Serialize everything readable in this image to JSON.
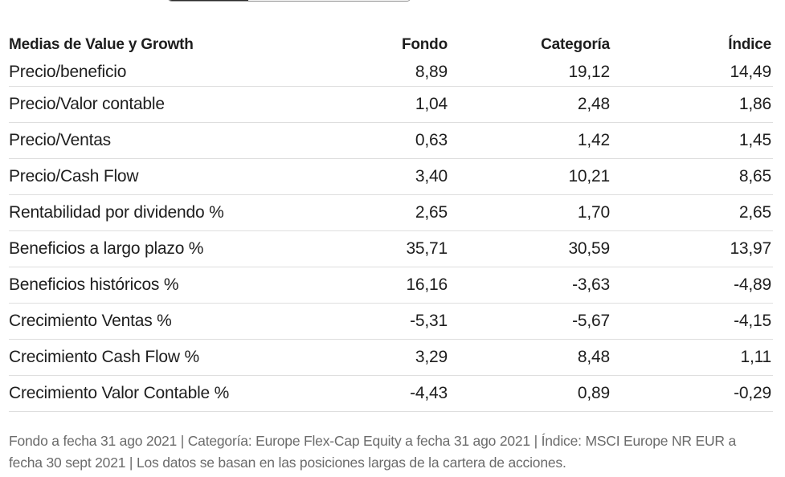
{
  "table": {
    "headers": {
      "label": "Medias de Value y Growth",
      "fondo": "Fondo",
      "categoria": "Categoría",
      "indice": "Índice"
    },
    "rows": [
      {
        "label": "Precio/beneficio",
        "fondo": "8,89",
        "categoria": "19,12",
        "indice": "14,49"
      },
      {
        "label": "Precio/Valor contable",
        "fondo": "1,04",
        "categoria": "2,48",
        "indice": "1,86"
      },
      {
        "label": "Precio/Ventas",
        "fondo": "0,63",
        "categoria": "1,42",
        "indice": "1,45"
      },
      {
        "label": "Precio/Cash Flow",
        "fondo": "3,40",
        "categoria": "10,21",
        "indice": "8,65"
      },
      {
        "label": "Rentabilidad por dividendo %",
        "fondo": "2,65",
        "categoria": "1,70",
        "indice": "2,65"
      },
      {
        "label": "Beneficios a largo plazo %",
        "fondo": "35,71",
        "categoria": "30,59",
        "indice": "13,97"
      },
      {
        "label": "Beneficios históricos %",
        "fondo": "16,16",
        "categoria": "-3,63",
        "indice": "-4,89"
      },
      {
        "label": "Crecimiento Ventas %",
        "fondo": "-5,31",
        "categoria": "-5,67",
        "indice": "-4,15"
      },
      {
        "label": "Crecimiento Cash Flow %",
        "fondo": "3,29",
        "categoria": "8,48",
        "indice": "1,11"
      },
      {
        "label": "Crecimiento Valor Contable %",
        "fondo": "-4,43",
        "categoria": "0,89",
        "indice": "-0,29"
      }
    ]
  },
  "footnote": "Fondo a fecha 31 ago 2021 | Categoría: Europe Flex-Cap Equity a fecha 31 ago 2021 | Índice: MSCI Europe NR EUR a fecha 30 sept 2021 | Los datos se basan en las posiciones largas de la cartera de acciones.",
  "colors": {
    "text": "#1e1e1e",
    "muted": "#6b6b6b",
    "divider": "#dedede",
    "toggle_active": "#2b2b2b"
  }
}
